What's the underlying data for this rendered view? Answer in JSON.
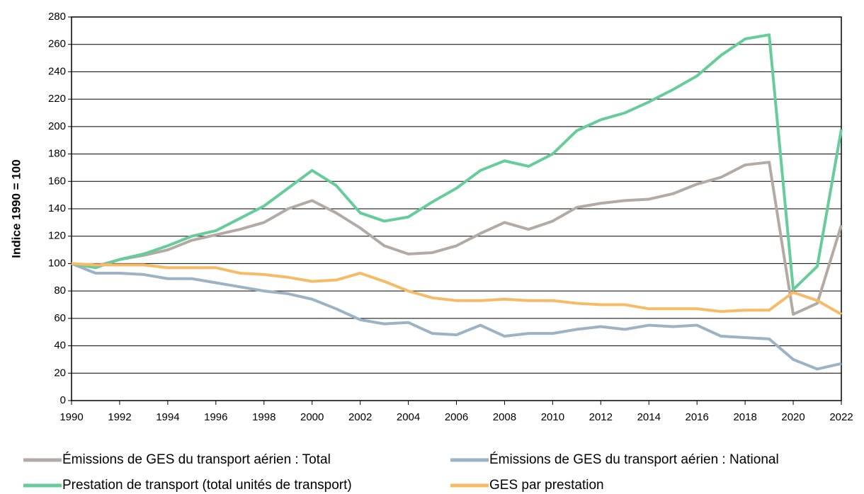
{
  "chart_data": {
    "type": "line",
    "ylabel": "Indice 1990 = 100",
    "x": [
      1990,
      1991,
      1992,
      1993,
      1994,
      1995,
      1996,
      1997,
      1998,
      1999,
      2000,
      2001,
      2002,
      2003,
      2004,
      2005,
      2006,
      2007,
      2008,
      2009,
      2010,
      2011,
      2012,
      2013,
      2014,
      2015,
      2016,
      2017,
      2018,
      2019,
      2020,
      2021,
      2022
    ],
    "series": [
      {
        "name": "Émissions de GES du transport aérien : Total",
        "color": "#b3aaa3",
        "values": [
          100,
          98,
          103,
          106,
          110,
          117,
          121,
          125,
          130,
          140,
          146,
          137,
          126,
          113,
          107,
          108,
          113,
          122,
          130,
          125,
          131,
          141,
          144,
          146,
          147,
          151,
          158,
          163,
          172,
          174,
          63,
          71,
          128
        ]
      },
      {
        "name": "Émissions de GES du transport aérien : National",
        "color": "#9cb3c6",
        "values": [
          100,
          93,
          93,
          92,
          89,
          89,
          86,
          83,
          80,
          78,
          74,
          67,
          59,
          56,
          57,
          49,
          48,
          55,
          47,
          49,
          49,
          52,
          54,
          52,
          55,
          54,
          55,
          47,
          46,
          45,
          30,
          23,
          27
        ]
      },
      {
        "name": "Prestation de transport (total unités de transport)",
        "color": "#66cc99",
        "values": [
          100,
          97,
          103,
          107,
          113,
          120,
          124,
          133,
          142,
          155,
          168,
          157,
          137,
          131,
          134,
          145,
          155,
          168,
          175,
          171,
          180,
          197,
          205,
          210,
          218,
          227,
          237,
          252,
          264,
          267,
          81,
          98,
          198
        ]
      },
      {
        "name": "GES par prestation",
        "color": "#f7bb66",
        "values": [
          100,
          99,
          99,
          99,
          97,
          97,
          97,
          93,
          92,
          90,
          87,
          88,
          93,
          87,
          80,
          75,
          73,
          73,
          74,
          73,
          73,
          71,
          70,
          70,
          67,
          67,
          67,
          65,
          66,
          66,
          79,
          73,
          63
        ]
      }
    ],
    "xlim": [
      1990,
      2022
    ],
    "xticks": [
      1990,
      1992,
      1994,
      1996,
      1998,
      2000,
      2002,
      2004,
      2006,
      2008,
      2010,
      2012,
      2014,
      2016,
      2018,
      2020,
      2022
    ],
    "ylim": [
      0,
      280
    ],
    "yticks": [
      0,
      20,
      40,
      60,
      80,
      100,
      120,
      140,
      160,
      180,
      200,
      220,
      240,
      260,
      280
    ],
    "grid": true
  }
}
